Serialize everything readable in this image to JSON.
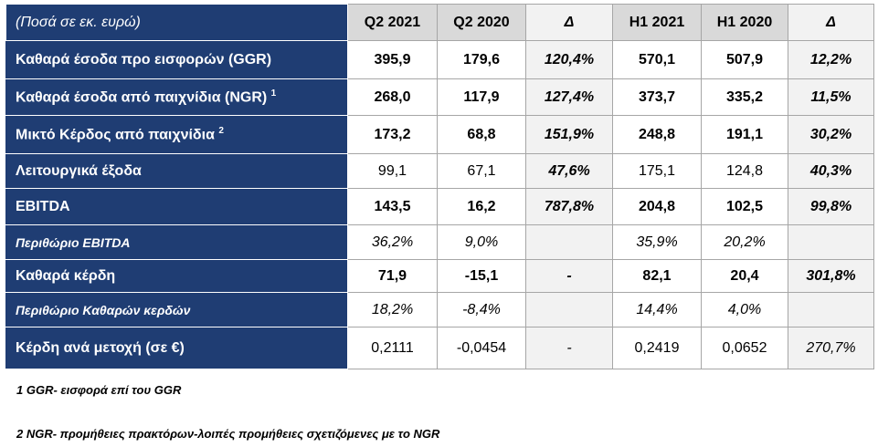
{
  "table": {
    "header": [
      "(Ποσά σε εκ. ευρώ)",
      "Q2 2021",
      "Q2 2020",
      "Δ",
      "H1 2021",
      "H1 2020",
      "Δ"
    ],
    "rows": [
      {
        "label": "Καθαρά έσοδα προ εισφορών (GGR)",
        "cells": [
          "395,9",
          "179,6",
          "120,4%",
          "570,1",
          "507,9",
          "12,2%"
        ]
      },
      {
        "label": "Καθαρά έσοδα από παιχνίδια (NGR)",
        "sup": "1",
        "cells": [
          "268,0",
          "117,9",
          "127,4%",
          "373,7",
          "335,2",
          "11,5%"
        ]
      },
      {
        "label": "Μικτό Κέρδος από παιχνίδια",
        "sup": "2",
        "cells": [
          "173,2",
          "68,8",
          "151,9%",
          "248,8",
          "191,1",
          "30,2%"
        ]
      },
      {
        "label": "Λειτουργικά έξοδα",
        "cells": [
          "99,1",
          "67,1",
          "47,6%",
          "175,1",
          "124,8",
          "40,3%"
        ]
      },
      {
        "label": "EBITDA",
        "cells": [
          "143,5",
          "16,2",
          "787,8%",
          "204,8",
          "102,5",
          "99,8%"
        ]
      },
      {
        "label": "Περιθώριο EBITDA",
        "cells": [
          "36,2%",
          "9,0%",
          null,
          "35,9%",
          "20,2%",
          null
        ]
      },
      {
        "label": "Καθαρά κέρδη",
        "cells": [
          "71,9",
          "-15,1",
          "-",
          "82,1",
          "20,4",
          "301,8%"
        ]
      },
      {
        "label": "Περιθώριο Καθαρών κερδών",
        "cells": [
          "18,2%",
          "-8,4%",
          null,
          "14,4%",
          "4,0%",
          null
        ]
      },
      {
        "label": "Κέρδη ανά μετοχή (σε €)",
        "cells": [
          "0,2111",
          "-0,0454",
          "-",
          "0,2419",
          "0,0652",
          "270,7%"
        ]
      }
    ]
  },
  "footnotes": [
    "1 GGR- εισφορά επί του GGR",
    "2 NGR- προμήθειες πρακτόρων-λοιπές προμήθειες σχετιζόμενες με το NGR"
  ]
}
